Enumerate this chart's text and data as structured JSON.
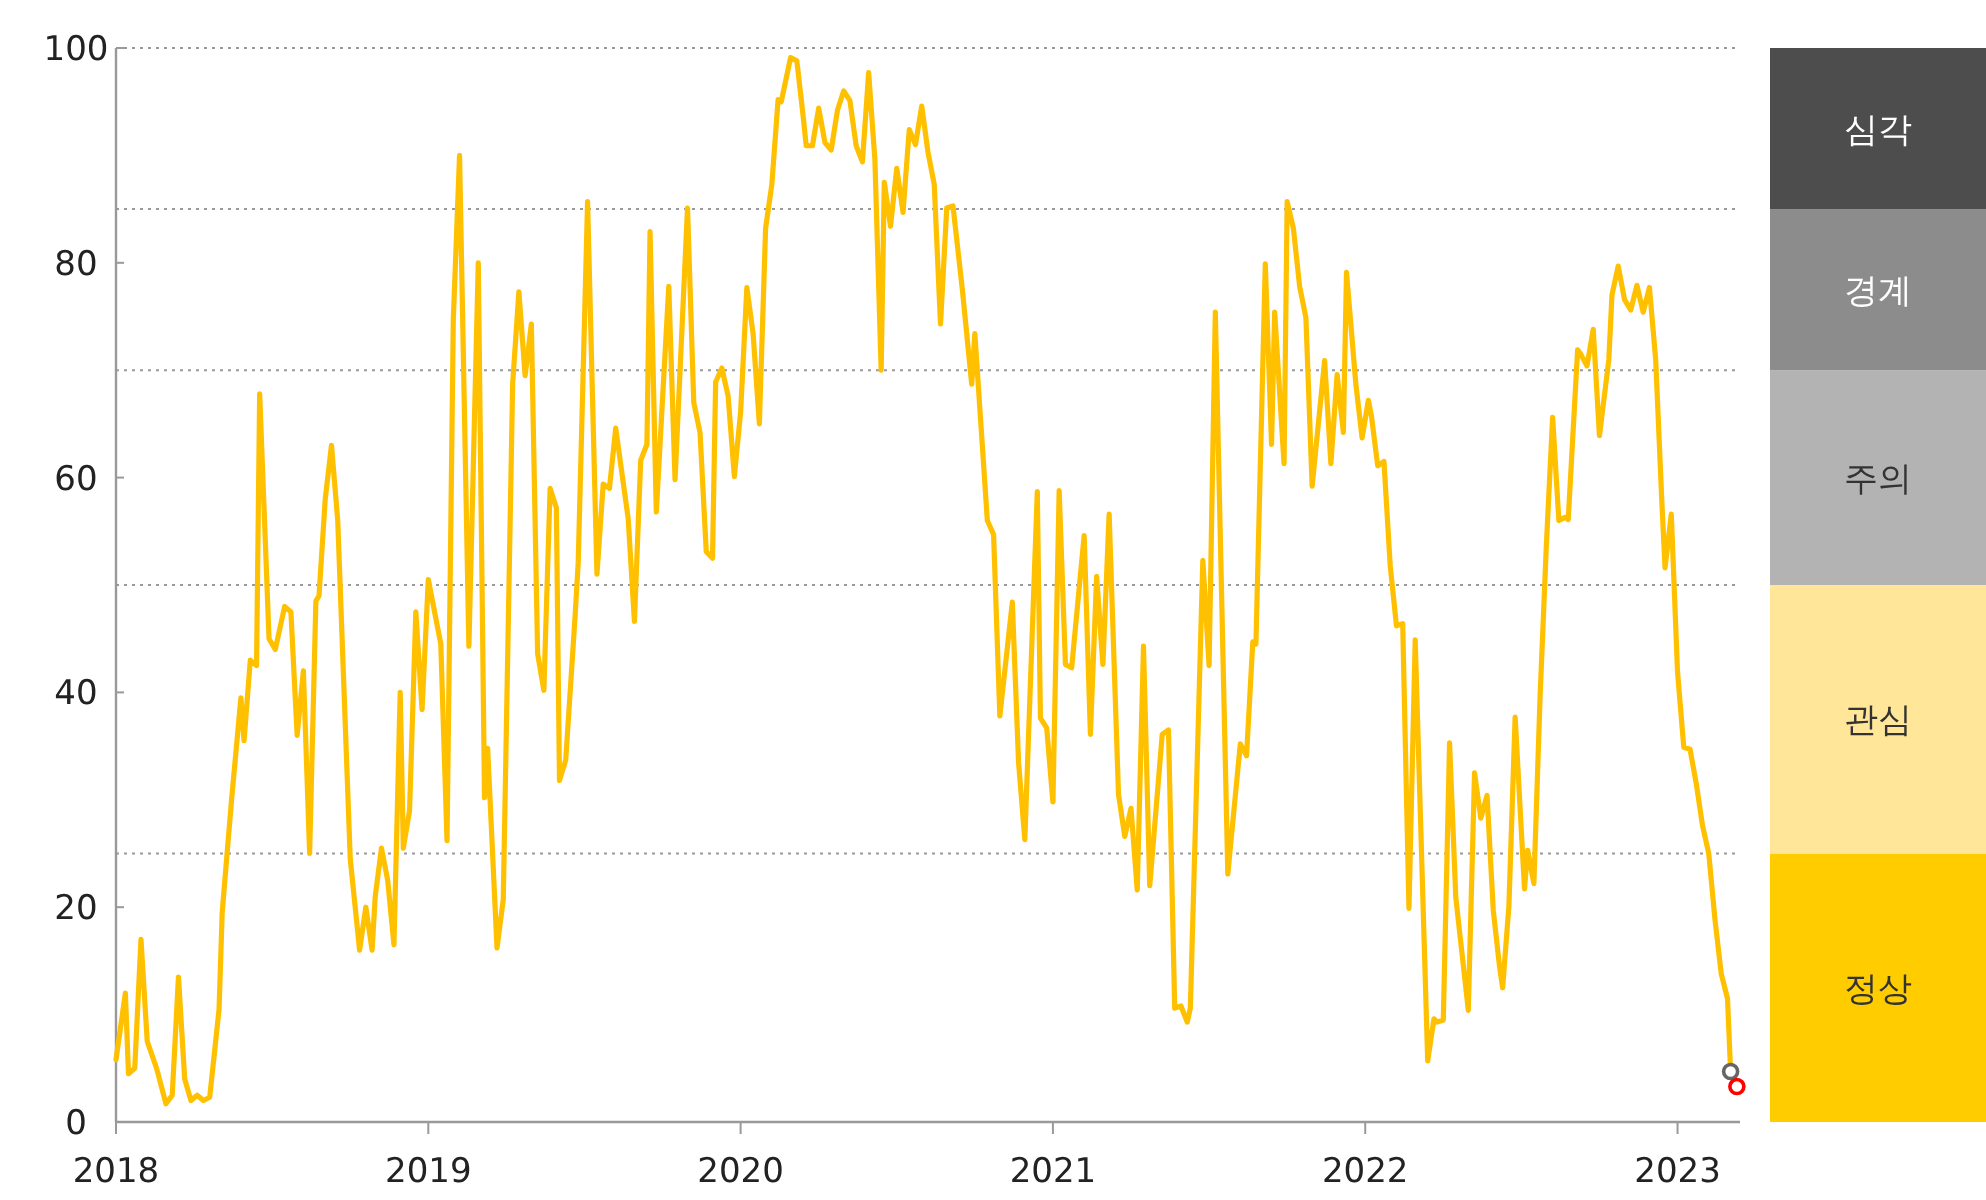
{
  "chart_data": [
    {
      "type": "line",
      "xlim": [
        2018,
        2023.2
      ],
      "xticks": [
        2018,
        2019,
        2020,
        2021,
        2022,
        2023
      ],
      "ylim": [
        0,
        100
      ],
      "yticks": [
        0,
        20,
        40,
        60,
        80,
        100
      ],
      "x": [
        2018.0,
        2018.03,
        2018.04,
        2018.06,
        2018.08,
        2018.1,
        2018.13,
        2018.16,
        2018.18,
        2018.2,
        2018.22,
        2018.24,
        2018.26,
        2018.28,
        2018.3,
        2018.33,
        2018.34,
        2018.37,
        2018.4,
        2018.41,
        2018.43,
        2018.45,
        2018.46,
        2018.49,
        2018.51,
        2018.54,
        2018.56,
        2018.58,
        2018.6,
        2018.62,
        2018.64,
        2018.65,
        2018.67,
        2018.69,
        2018.71,
        2018.75,
        2018.78,
        2018.8,
        2018.82,
        2018.83,
        2018.85,
        2018.87,
        2018.89,
        2018.91,
        2018.92,
        2018.94,
        2018.96,
        2018.98,
        2019.0,
        2019.01,
        2019.04,
        2019.06,
        2019.08,
        2019.1,
        2019.13,
        2019.16,
        2019.18,
        2019.19,
        2019.22,
        2019.24,
        2019.27,
        2019.29,
        2019.31,
        2019.33,
        2019.35,
        2019.37,
        2019.39,
        2019.41,
        2019.42,
        2019.44,
        2019.47,
        2019.48,
        2019.51,
        2019.54,
        2019.56,
        2019.58,
        2019.6,
        2019.64,
        2019.66,
        2019.68,
        2019.7,
        2019.71,
        2019.73,
        2019.77,
        2019.79,
        2019.83,
        2019.85,
        2019.87,
        2019.89,
        2019.91,
        2019.92,
        2019.94,
        2019.96,
        2019.98,
        2020.0,
        2020.02,
        2020.04,
        2020.06,
        2020.08,
        2020.1,
        2020.12,
        2020.13,
        2020.16,
        2020.18,
        2020.2,
        2020.21,
        2020.23,
        2020.25,
        2020.27,
        2020.29,
        2020.31,
        2020.33,
        2020.35,
        2020.37,
        2020.39,
        2020.41,
        2020.43,
        2020.45,
        2020.46,
        2020.48,
        2020.5,
        2020.52,
        2020.54,
        2020.56,
        2020.58,
        2020.6,
        2020.62,
        2020.64,
        2020.66,
        2020.68,
        2020.71,
        2020.74,
        2020.75,
        2020.79,
        2020.81,
        2020.83,
        2020.87,
        2020.89,
        2020.91,
        2020.95,
        2020.96,
        2020.98,
        2021.0,
        2021.02,
        2021.04,
        2021.06,
        2021.1,
        2021.12,
        2021.14,
        2021.16,
        2021.18,
        2021.21,
        2021.23,
        2021.25,
        2021.27,
        2021.29,
        2021.31,
        2021.35,
        2021.37,
        2021.39,
        2021.41,
        2021.43,
        2021.44,
        2021.48,
        2021.5,
        2021.52,
        2021.56,
        2021.6,
        2021.62,
        2021.64,
        2021.65,
        2021.68,
        2021.7,
        2021.71,
        2021.74,
        2021.75,
        2021.77,
        2021.79,
        2021.81,
        2021.83,
        2021.87,
        2021.89,
        2021.91,
        2021.93,
        2021.94,
        2021.97,
        2021.99,
        2022.01,
        2022.02,
        2022.04,
        2022.06,
        2022.08,
        2022.1,
        2022.12,
        2022.14,
        2022.16,
        2022.2,
        2022.22,
        2022.23,
        2022.25,
        2022.27,
        2022.29,
        2022.33,
        2022.35,
        2022.37,
        2022.39,
        2022.41,
        2022.43,
        2022.44,
        2022.46,
        2022.48,
        2022.51,
        2022.52,
        2022.54,
        2022.56,
        2022.58,
        2022.6,
        2022.62,
        2022.64,
        2022.65,
        2022.68,
        2022.69,
        2022.71,
        2022.73,
        2022.75,
        2022.78,
        2022.79,
        2022.81,
        2022.83,
        2022.85,
        2022.87,
        2022.89,
        2022.91,
        2022.93,
        2022.95,
        2022.96,
        2022.98,
        2023.0,
        2023.02,
        2023.04,
        2023.06,
        2023.08,
        2023.1,
        2023.12,
        2023.14,
        2023.16,
        2023.17
      ],
      "series": [
        {
          "type": "line",
          "color": "#ffc000",
          "values": [
            5.8,
            12,
            4.5,
            5,
            17,
            7.5,
            5,
            1.7,
            2.5,
            13.5,
            4,
            2,
            2.5,
            2,
            2.3,
            10.5,
            19.5,
            30,
            39.5,
            35.5,
            43,
            42.5,
            67.8,
            45,
            44,
            48,
            47.5,
            36,
            42,
            25,
            48.5,
            49,
            58,
            63,
            56,
            24.5,
            16,
            20,
            16,
            21,
            25.5,
            22.5,
            16.5,
            40,
            25.5,
            29,
            47.5,
            38.4,
            50.5,
            49,
            44.5,
            26.2,
            74.7,
            90,
            44.3,
            80,
            30.2,
            34.8,
            16.2,
            20.7,
            68.7,
            77.3,
            69.5,
            74.3,
            43.6,
            40.2,
            59,
            57.2,
            31.8,
            33.7,
            47.1,
            52.1,
            85.7,
            51,
            59.4,
            59,
            64.6,
            56.2,
            46.6,
            61.6,
            63.1,
            82.9,
            56.8,
            77.8,
            59.8,
            85.1,
            67,
            64.2,
            53.1,
            52.5,
            68.9,
            70.2,
            67.6,
            60.1,
            66.1,
            77.7,
            73.4,
            65,
            83.2,
            87.3,
            95.2,
            95,
            99.1,
            98.8,
            93.7,
            90.9,
            90.9,
            94.4,
            91.2,
            90.5,
            94.2,
            96,
            95.1,
            90.9,
            89.4,
            97.7,
            89.6,
            70,
            87.5,
            83.4,
            88.8,
            84.7,
            92.4,
            91,
            94.6,
            90.3,
            87.3,
            74.3,
            85.1,
            85.3,
            77.5,
            68.7,
            73.4,
            56,
            54.7,
            37.8,
            48.4,
            33.5,
            26.3,
            58.7,
            37.6,
            36.7,
            29.8,
            58.8,
            42.6,
            42.3,
            54.6,
            36.1,
            50.8,
            42.6,
            56.6,
            30.5,
            26.6,
            29.2,
            21.6,
            44.3,
            22,
            36.1,
            36.5,
            10.6,
            10.8,
            9.3,
            10.6,
            52.3,
            42.5,
            75.4,
            23.1,
            35.2,
            34.1,
            44.7,
            44.5,
            79.9,
            63.1,
            75.4,
            61.3,
            85.7,
            83.2,
            77.8,
            74.9,
            59.2,
            70.9,
            61.3,
            69.6,
            64.2,
            79.1,
            68.7,
            63.7,
            67.2,
            65.7,
            61.1,
            61.5,
            51.8,
            46.2,
            46.4,
            19.9,
            44.9,
            5.7,
            9.6,
            9.3,
            9.5,
            35.3,
            20.9,
            10.4,
            32.5,
            28.3,
            30.4,
            19.7,
            14.5,
            12.5,
            20.1,
            37.7,
            21.7,
            25.3,
            22.2,
            39.7,
            53.7,
            65.6,
            56,
            56.3,
            56.1,
            71.9,
            71.5,
            70.4,
            73.8,
            63.9,
            71,
            77,
            79.7,
            76.6,
            75.6,
            77.9,
            75.4,
            77.7,
            71,
            57.6,
            51.6,
            56.6,
            41.9,
            34.9,
            34.7,
            31.5,
            27.6,
            25,
            18.8,
            13.8,
            11.5,
            4.7
          ]
        },
        {
          "type": "scatter",
          "marker": "circle",
          "x": [
            2023.17,
            2023.19
          ],
          "values": [
            4.7,
            3.3
          ],
          "colors": [
            "#666666",
            "#ff0000"
          ]
        }
      ],
      "ref_lines": [
        {
          "axis": "y",
          "value": 25,
          "color": "#999999",
          "line_style": "dotted"
        },
        {
          "axis": "y",
          "value": 50,
          "color": "#999999",
          "line_style": "dotted"
        },
        {
          "axis": "y",
          "value": 70,
          "color": "#999999",
          "line_style": "dotted"
        },
        {
          "axis": "y",
          "value": 85,
          "color": "#999999",
          "line_style": "dotted"
        },
        {
          "axis": "y",
          "value": 100,
          "color": "#999999",
          "line_style": "dotted"
        }
      ]
    },
    {
      "type": "bar",
      "stacked": true,
      "categories": [
        null
      ],
      "ylim": [
        0,
        100
      ],
      "series": [
        {
          "name": "정상",
          "color": "#ffcc00",
          "values": [
            25
          ]
        },
        {
          "name": "관심",
          "color": "#ffe699",
          "values": [
            25
          ]
        },
        {
          "name": "주의",
          "color": "#b3b3b3",
          "values": [
            20
          ]
        },
        {
          "name": "경계",
          "color": "#8c8c8c",
          "values": [
            15
          ]
        },
        {
          "name": "심각",
          "color": "#4d4d4d",
          "values": [
            15
          ]
        }
      ]
    }
  ]
}
